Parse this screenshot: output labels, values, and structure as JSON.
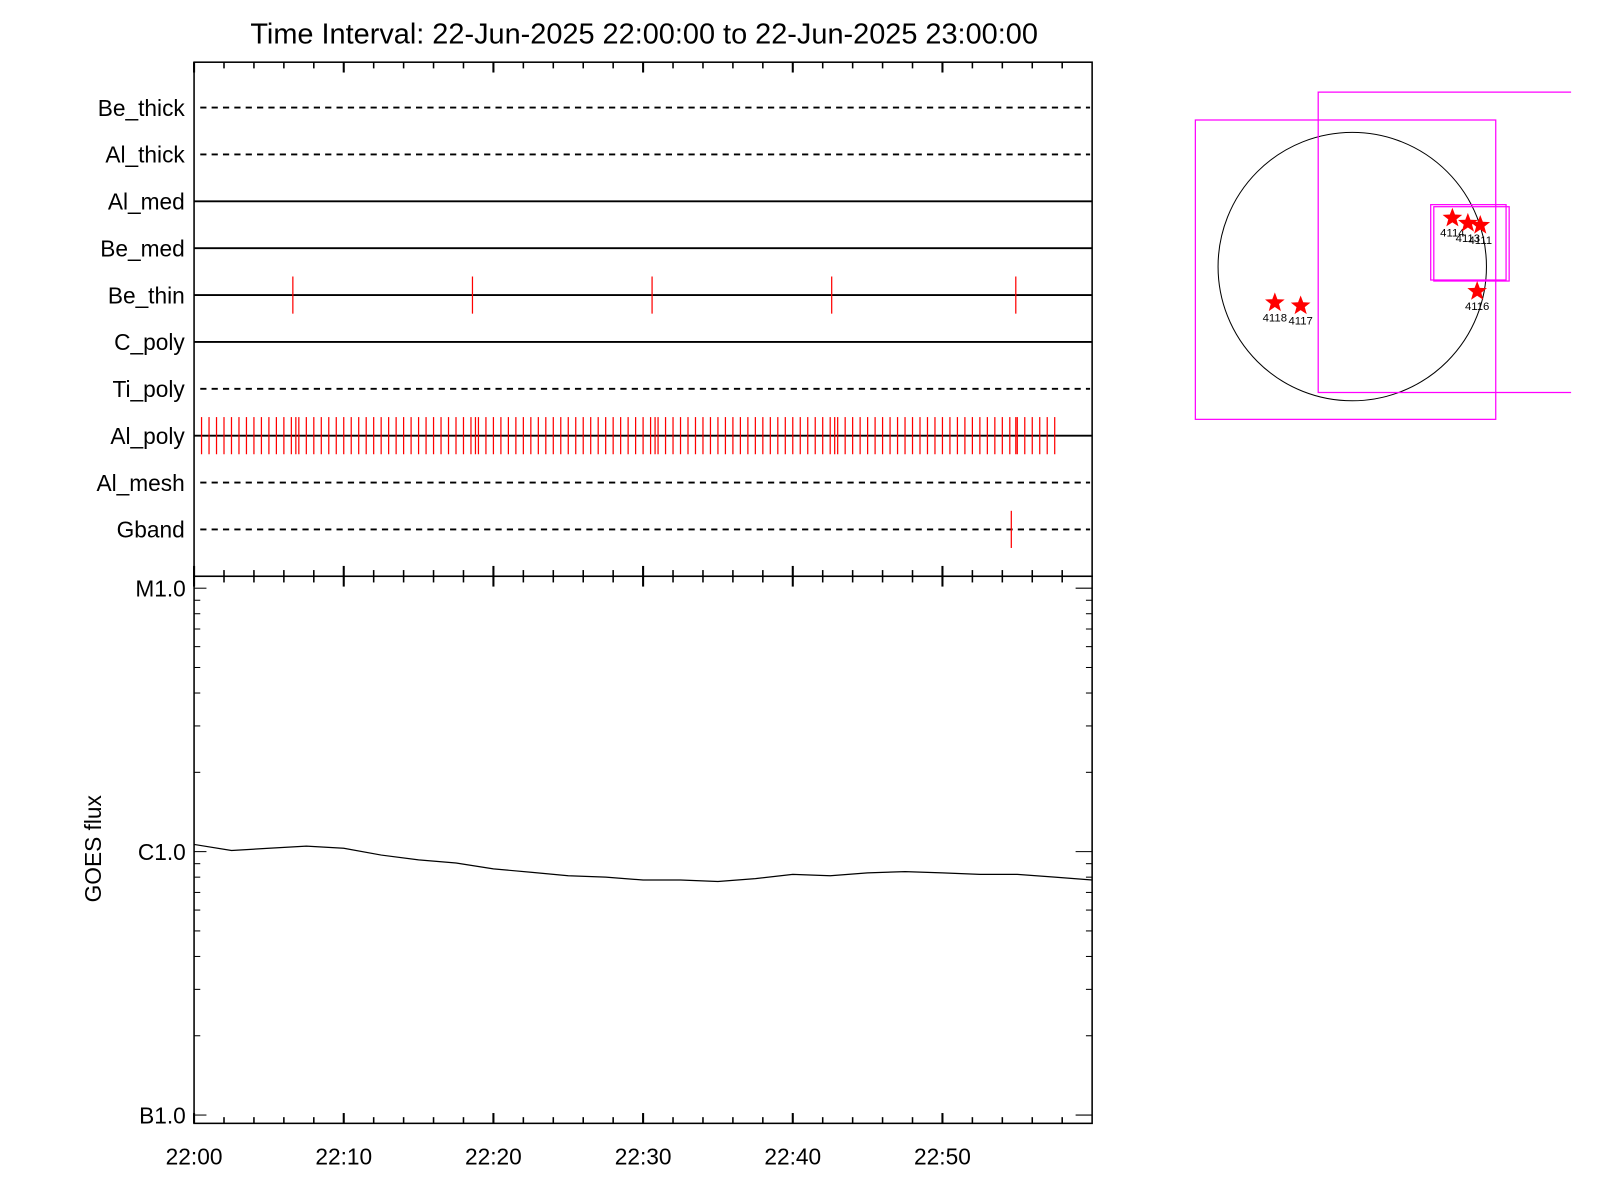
{
  "chart_data": [
    {
      "type": "event",
      "title": "Time Interval: 22-Jun-2025 22:00:00 to 22-Jun-2025 23:00:00",
      "xlim": [
        0,
        60
      ],
      "event_color": "#ff0000",
      "rows": [
        {
          "name": "Be_thick",
          "style": "dashed",
          "events": []
        },
        {
          "name": "Al_thick",
          "style": "dashed",
          "events": []
        },
        {
          "name": "Al_med",
          "style": "solid",
          "events": []
        },
        {
          "name": "Be_med",
          "style": "solid",
          "events": []
        },
        {
          "name": "Be_thin",
          "style": "solid",
          "events": [
            6.6,
            18.6,
            30.6,
            42.6,
            54.9
          ]
        },
        {
          "name": "C_poly",
          "style": "solid",
          "events": []
        },
        {
          "name": "Ti_poly",
          "style": "dashed",
          "events": []
        },
        {
          "name": "Al_poly",
          "style": "solid",
          "events": [
            0.5,
            1,
            1.5,
            2,
            2.5,
            3,
            3.5,
            4,
            4.5,
            5,
            5.5,
            6,
            6.5,
            6.8,
            7,
            7.5,
            8,
            8.5,
            9,
            9.5,
            10,
            10.5,
            11,
            11.5,
            12,
            12.5,
            13,
            13.5,
            14,
            14.5,
            15,
            15.5,
            16,
            16.5,
            17,
            17.5,
            18,
            18.5,
            18.8,
            19,
            19.5,
            20,
            20.5,
            21,
            21.5,
            22,
            22.5,
            23,
            23.5,
            24,
            24.5,
            25,
            25.5,
            26,
            26.5,
            27,
            27.5,
            28,
            28.5,
            29,
            29.5,
            30,
            30.5,
            30.8,
            31,
            31.5,
            32,
            32.5,
            33,
            33.5,
            34,
            34.5,
            35,
            35.5,
            36,
            36.5,
            37,
            37.5,
            38,
            38.5,
            39,
            39.5,
            40,
            40.5,
            41,
            41.5,
            42,
            42.5,
            42.8,
            43,
            43.5,
            44,
            44.5,
            45,
            45.5,
            46,
            46.5,
            47,
            47.5,
            48,
            48.5,
            49,
            49.5,
            50,
            50.5,
            51,
            51.5,
            52,
            52.5,
            53,
            53.5,
            54,
            54.5,
            54.9,
            55,
            55.5,
            56,
            56.5,
            57,
            57.5
          ]
        },
        {
          "name": "Al_mesh",
          "style": "dashed",
          "events": []
        },
        {
          "name": "Gband",
          "style": "dashed",
          "events": [
            54.6
          ]
        }
      ]
    },
    {
      "type": "line",
      "ylabel": "GOES flux",
      "log_scale": true,
      "color": "#000000",
      "xlim": [
        0,
        60
      ],
      "xticks": [
        {
          "value": 0,
          "label": "22:00"
        },
        {
          "value": 10,
          "label": "22:10"
        },
        {
          "value": 20,
          "label": "22:20"
        },
        {
          "value": 30,
          "label": "22:30"
        },
        {
          "value": 40,
          "label": "22:40"
        },
        {
          "value": 50,
          "label": "22:50"
        }
      ],
      "xminor_ticks": [
        2,
        4,
        6,
        8,
        12,
        14,
        16,
        18,
        22,
        24,
        26,
        28,
        32,
        34,
        36,
        38,
        42,
        44,
        46,
        48,
        52,
        54,
        56,
        58
      ],
      "ylim": [
        9.3e-08,
        1.11e-05
      ],
      "yticks": [
        {
          "value": 1e-05,
          "label": "M1.0"
        },
        {
          "value": 1e-06,
          "label": "C1.0"
        },
        {
          "value": 1e-07,
          "label": "B1.0"
        }
      ],
      "yminor_ticks": [
        2e-07,
        3e-07,
        4e-07,
        5e-07,
        6e-07,
        7e-07,
        8e-07,
        9e-07,
        2e-06,
        3e-06,
        4e-06,
        5e-06,
        6e-06,
        7e-06,
        8e-06,
        9e-06
      ],
      "x": [
        0,
        2.5,
        5,
        7.5,
        10,
        12.5,
        15,
        17.5,
        20,
        22.5,
        25,
        27.5,
        30,
        32.5,
        35,
        37.5,
        40,
        42.5,
        45,
        47.5,
        50,
        52.5,
        55,
        57.5,
        60
      ],
      "values": [
        1.065e-06,
        1.01e-06,
        1.03e-06,
        1.05e-06,
        1.03e-06,
        9.7e-07,
        9.3e-07,
        9.05e-07,
        8.6e-07,
        8.35e-07,
        8.1e-07,
        8e-07,
        7.8e-07,
        7.8e-07,
        7.7e-07,
        7.9e-07,
        8.2e-07,
        8.1e-07,
        8.3e-07,
        8.4e-07,
        8.3e-07,
        8.2e-07,
        8.2e-07,
        8e-07,
        7.8e-07
      ]
    }
  ],
  "map": {
    "regions": [
      "4114",
      "4113",
      "4111",
      "4116",
      "4118",
      "4117"
    ]
  }
}
